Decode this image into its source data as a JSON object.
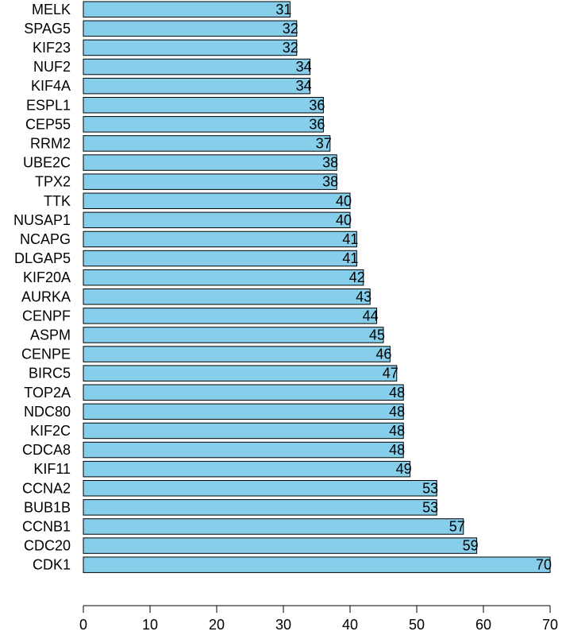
{
  "chart_data": {
    "type": "bar",
    "orientation": "horizontal",
    "categories": [
      "MELK",
      "SPAG5",
      "KIF23",
      "NUF2",
      "KIF4A",
      "ESPL1",
      "CEP55",
      "RRM2",
      "UBE2C",
      "TPX2",
      "TTK",
      "NUSAP1",
      "NCAPG",
      "DLGAP5",
      "KIF20A",
      "AURKA",
      "CENPF",
      "ASPM",
      "CENPE",
      "BIRC5",
      "TOP2A",
      "NDC80",
      "KIF2C",
      "CDCA8",
      "KIF11",
      "CCNA2",
      "BUB1B",
      "CCNB1",
      "CDC20",
      "CDK1"
    ],
    "values": [
      31,
      32,
      32,
      34,
      34,
      36,
      36,
      37,
      38,
      38,
      40,
      40,
      41,
      41,
      42,
      43,
      44,
      45,
      46,
      47,
      48,
      48,
      48,
      48,
      49,
      53,
      53,
      57,
      59,
      70
    ],
    "value_labels": [
      "31",
      "32",
      "32",
      "34",
      "34",
      "36",
      "36",
      "37",
      "38",
      "38",
      "40",
      "40",
      "41",
      "41",
      "42",
      "43",
      "44",
      "45",
      "46",
      "47",
      "48",
      "48",
      "48",
      "48",
      "49",
      "53",
      "53",
      "57",
      "59",
      "70"
    ],
    "xlim": [
      0,
      70
    ],
    "x_ticks": [
      0,
      10,
      20,
      30,
      40,
      50,
      60,
      70
    ],
    "x_tick_labels": [
      "0",
      "10",
      "20",
      "30",
      "40",
      "50",
      "60",
      "70"
    ],
    "title": "",
    "xlabel": "",
    "ylabel": "",
    "grid": false,
    "legend": "none",
    "bar_color": "#87ceeb",
    "bar_edge_color": "#000000"
  }
}
